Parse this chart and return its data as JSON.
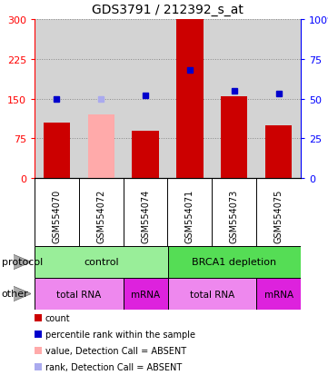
{
  "title": "GDS3791 / 212392_s_at",
  "samples": [
    "GSM554070",
    "GSM554072",
    "GSM554074",
    "GSM554071",
    "GSM554073",
    "GSM554075"
  ],
  "counts": [
    105,
    null,
    90,
    300,
    155,
    100
  ],
  "counts_absent": [
    null,
    120,
    null,
    null,
    null,
    null
  ],
  "percentile_ranks": [
    50,
    null,
    52,
    68,
    55,
    53
  ],
  "percentile_ranks_absent": [
    null,
    50,
    null,
    null,
    null,
    null
  ],
  "ylim_left": [
    0,
    300
  ],
  "yticks_left": [
    0,
    75,
    150,
    225,
    300
  ],
  "yticks_right": [
    0,
    25,
    50,
    75,
    100
  ],
  "bar_color": "#cc0000",
  "bar_color_absent": "#ffaaaa",
  "dot_color": "#0000cc",
  "dot_color_absent": "#aaaaee",
  "bg_color": "#d3d3d3",
  "protocol_control_color": "#99ee99",
  "protocol_brca1_color": "#55dd55",
  "other_light_color": "#ee88ee",
  "other_dark_color": "#dd22dd",
  "grid_color": "#888888",
  "legend_items": [
    {
      "color": "#cc0000",
      "label": "count"
    },
    {
      "color": "#0000cc",
      "label": "percentile rank within the sample"
    },
    {
      "color": "#ffaaaa",
      "label": "value, Detection Call = ABSENT"
    },
    {
      "color": "#aaaaee",
      "label": "rank, Detection Call = ABSENT"
    }
  ],
  "fig_width": 3.61,
  "fig_height": 4.14,
  "dpi": 100
}
